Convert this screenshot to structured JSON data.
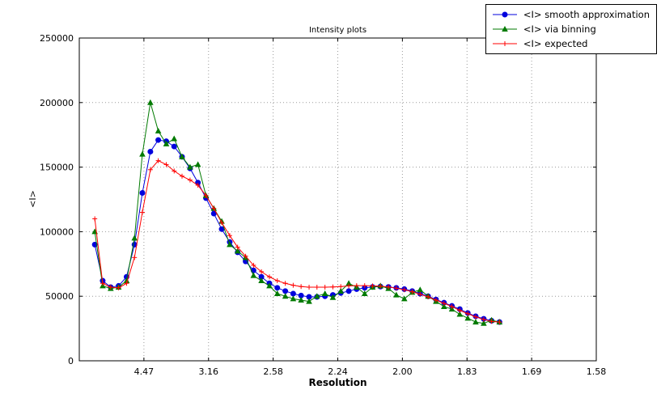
{
  "chart_data": {
    "type": "line",
    "title": "Intensity plots",
    "xlabel": "Resolution",
    "ylabel": "<I>",
    "grid": "dotted",
    "legend": {
      "position": "top-right"
    },
    "ylim": [
      0,
      250000
    ],
    "x_axis": {
      "note": "x is 1/d^2; tick labels show resolution d in Angstrom",
      "min": 0.0,
      "max": 0.4,
      "ticks": [
        {
          "pos": 0.05,
          "label": "4.47"
        },
        {
          "pos": 0.1,
          "label": "3.16"
        },
        {
          "pos": 0.15,
          "label": "2.58"
        },
        {
          "pos": 0.2,
          "label": "2.24"
        },
        {
          "pos": 0.25,
          "label": "2.00"
        },
        {
          "pos": 0.3,
          "label": "1.83"
        },
        {
          "pos": 0.35,
          "label": "1.69"
        },
        {
          "pos": 0.4,
          "label": "1.58"
        }
      ]
    },
    "y_axis": {
      "ticks": [
        {
          "value": 0,
          "label": "0"
        },
        {
          "value": 50000,
          "label": "50000"
        },
        {
          "value": 100000,
          "label": "100000"
        },
        {
          "value": 150000,
          "label": "150000"
        },
        {
          "value": 200000,
          "label": "200000"
        },
        {
          "value": 250000,
          "label": "250000"
        }
      ]
    },
    "x": [
      0.012,
      0.0181,
      0.0243,
      0.0304,
      0.0366,
      0.0427,
      0.0488,
      0.055,
      0.0611,
      0.0673,
      0.0734,
      0.0795,
      0.0857,
      0.0918,
      0.098,
      0.1041,
      0.1102,
      0.1164,
      0.1225,
      0.1287,
      0.1348,
      0.1409,
      0.1471,
      0.1532,
      0.1594,
      0.1655,
      0.1716,
      0.1778,
      0.1839,
      0.1901,
      0.1962,
      0.2023,
      0.2085,
      0.2146,
      0.2208,
      0.2269,
      0.233,
      0.2392,
      0.2453,
      0.2515,
      0.2576,
      0.2637,
      0.2699,
      0.276,
      0.2822,
      0.2883,
      0.2944,
      0.3006,
      0.3067,
      0.3129,
      0.319,
      0.3251
    ],
    "series": [
      {
        "name": "<I> smooth approximation",
        "color": "#0000dd",
        "marker": "circle",
        "values": [
          90000,
          62000,
          57000,
          58000,
          65000,
          90000,
          130000,
          162000,
          171000,
          170000,
          166000,
          158000,
          149000,
          138000,
          126000,
          114000,
          102000,
          92000,
          84000,
          77000,
          70000,
          65000,
          60000,
          56500,
          54000,
          52000,
          50500,
          49500,
          49500,
          50000,
          51000,
          52500,
          54000,
          55500,
          56500,
          57200,
          57500,
          57200,
          56500,
          55500,
          54000,
          52000,
          50000,
          47500,
          45000,
          42500,
          40000,
          37000,
          34500,
          32500,
          31000,
          30000
        ]
      },
      {
        "name": "<I> via binning",
        "color": "#007a00",
        "marker": "triangle",
        "values": [
          100000,
          58000,
          56000,
          57000,
          62000,
          95000,
          160000,
          200000,
          178000,
          168000,
          172000,
          158000,
          150000,
          152000,
          128000,
          118000,
          108000,
          90000,
          85000,
          80000,
          66000,
          62000,
          58000,
          52000,
          50000,
          48000,
          47000,
          46000,
          50000,
          52000,
          49000,
          54000,
          60000,
          57000,
          52000,
          57000,
          58000,
          56000,
          51000,
          48000,
          53000,
          55000,
          50000,
          46000,
          42000,
          40000,
          36000,
          33000,
          30000,
          29000,
          31500,
          30000
        ]
      },
      {
        "name": "<I> expected",
        "color": "#ff0000",
        "marker": "plus",
        "values": [
          110000,
          60000,
          57000,
          56500,
          60000,
          80000,
          115000,
          148000,
          155000,
          152000,
          147000,
          143000,
          140000,
          136000,
          128000,
          118000,
          107000,
          97000,
          88000,
          81000,
          74000,
          69000,
          65000,
          62000,
          60000,
          58500,
          57500,
          57000,
          57000,
          57000,
          57200,
          57500,
          58000,
          58200,
          58200,
          58000,
          57800,
          57200,
          56200,
          55000,
          53500,
          51500,
          49500,
          47000,
          44500,
          42000,
          39000,
          36500,
          34000,
          32000,
          30500,
          30000
        ]
      }
    ]
  }
}
